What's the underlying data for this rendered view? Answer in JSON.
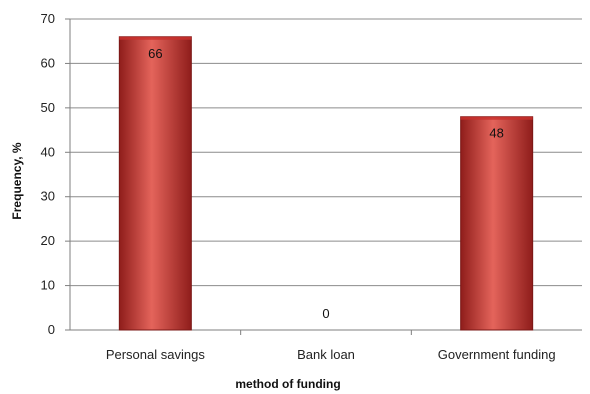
{
  "chart_data": {
    "type": "bar",
    "categories": [
      "Personal savings",
      "Bank loan",
      "Government funding"
    ],
    "values": [
      66,
      0,
      48
    ],
    "data_labels": [
      "66",
      "0",
      "48"
    ],
    "title": "",
    "xlabel": "method of funding",
    "ylabel": "Frequency, %",
    "ylim": [
      0,
      70
    ],
    "yticks": [
      0,
      10,
      20,
      30,
      40,
      50,
      60,
      70
    ],
    "grid": true,
    "legend": "none",
    "colors": {
      "bar_fill": "#c9302c",
      "bar_highlight": "#e4645b",
      "bar_shadow": "#8f1d1b",
      "bar_stroke": "#7a1715",
      "grid": "#8c8c8c",
      "axis": "#7f7f7f"
    }
  }
}
